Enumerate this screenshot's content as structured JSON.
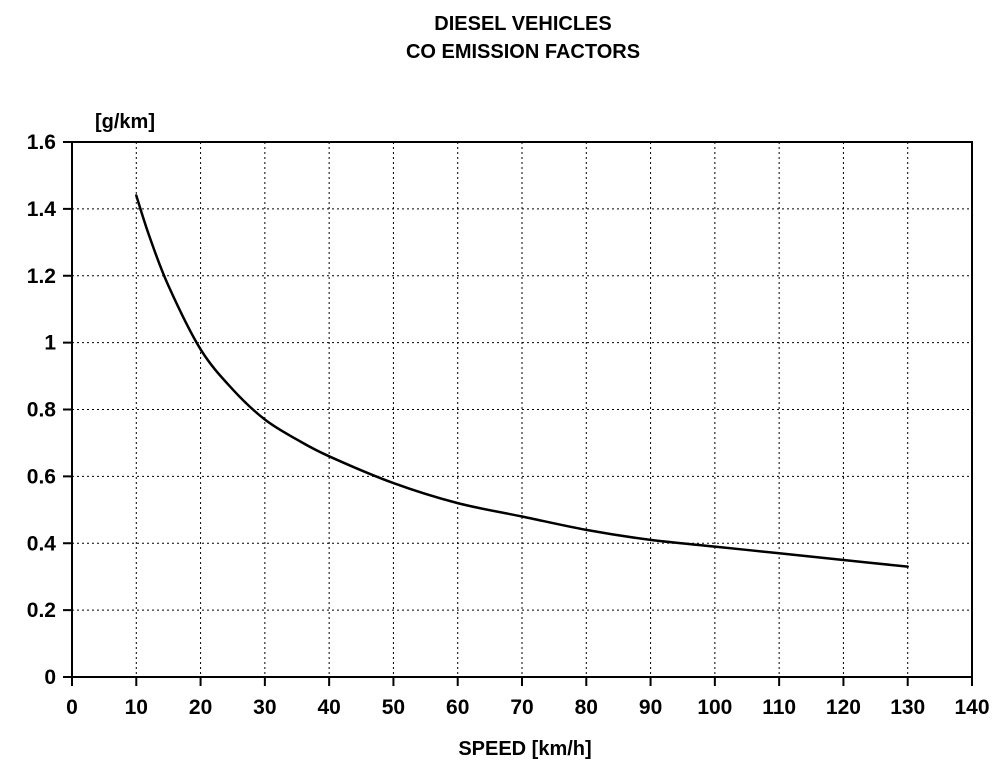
{
  "chart_data": {
    "type": "line",
    "title_lines": [
      "DIESEL VEHICLES",
      "CO EMISSION FACTORS"
    ],
    "xlabel": "SPEED [km/h]",
    "ylabel": "[g/km]",
    "xlim": [
      0,
      140
    ],
    "ylim": [
      0,
      1.6
    ],
    "xticks": [
      0,
      10,
      20,
      30,
      40,
      50,
      60,
      70,
      80,
      90,
      100,
      110,
      120,
      130,
      140
    ],
    "yticks": [
      0,
      0.2,
      0.4,
      0.6,
      0.8,
      1,
      1.2,
      1.4,
      1.6
    ],
    "xtick_labels": [
      "0",
      "10",
      "20",
      "30",
      "40",
      "50",
      "60",
      "70",
      "80",
      "90",
      "100",
      "110",
      "120",
      "130",
      "140"
    ],
    "ytick_labels": [
      "0",
      "0.2",
      "0.4",
      "0.6",
      "0.8",
      "1",
      "1.2",
      "1.4",
      "1.6"
    ],
    "grid": true,
    "series": [
      {
        "x": [
          10,
          12,
          15,
          20,
          25,
          30,
          35,
          40,
          50,
          60,
          70,
          80,
          90,
          100,
          110,
          120,
          130
        ],
        "y": [
          1.44,
          1.32,
          1.17,
          0.98,
          0.86,
          0.77,
          0.71,
          0.66,
          0.58,
          0.52,
          0.48,
          0.44,
          0.41,
          0.39,
          0.37,
          0.35,
          0.33
        ]
      }
    ]
  }
}
